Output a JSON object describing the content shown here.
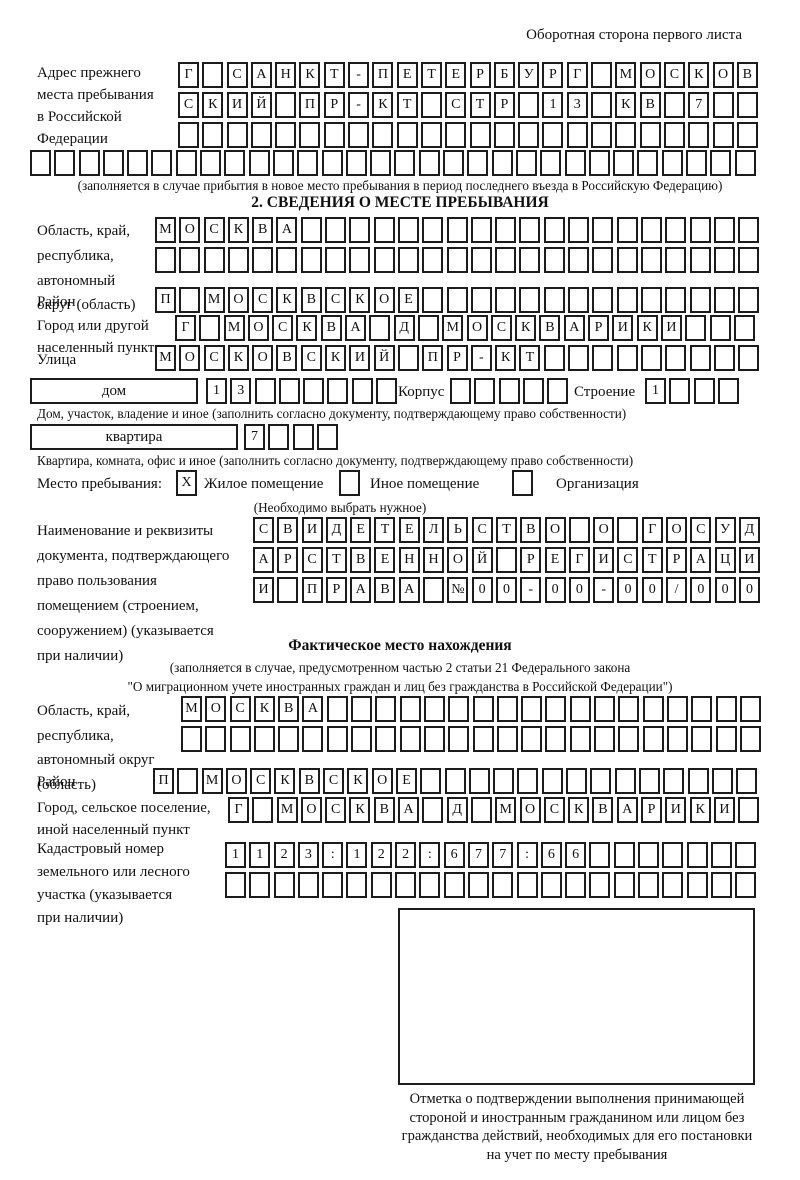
{
  "page": {
    "side_note": "Оборотная сторона первого листа"
  },
  "prev_address": {
    "label": [
      "Адрес прежнего",
      "места пребывания",
      "в Российской",
      "Федерации"
    ],
    "row1": "Г САНКТ-ПЕТЕРБУРГ МОСКОВ",
    "row2": "СКИЙ ПР-КТ СТР 13 КВ 7",
    "row3": "",
    "row4": "",
    "note": "(заполняется в случае прибытия в новое место пребывания в период последнего въезда в Российскую Федерацию)"
  },
  "section2": {
    "title": "2. СВЕДЕНИЯ О МЕСТЕ ПРЕБЫВАНИЯ",
    "oblast": {
      "label": [
        "Область, край,",
        "республика,",
        "автономный",
        "округ (область)"
      ],
      "row1": "МОСКВА",
      "row2": ""
    },
    "rayon": {
      "label": "Район",
      "row": "П МОСКВСКОЕ"
    },
    "gorod": {
      "label": [
        "Город или другой",
        "населенный пункт"
      ],
      "row": "Г МОСКВА Д МОСКВАРИКИ"
    },
    "ulitsa": {
      "label": "Улица",
      "row": "МОСКОВСКИЙ ПР-КТ"
    },
    "dom": {
      "label": "дом",
      "row": "13",
      "korpus_label": "Корпус",
      "korpus_row": "",
      "stroenie_label": "Строение",
      "stroenie_row": "1",
      "note": "Дом, участок, владение и иное (заполнить согласно документу, подтверждающему право собственности)"
    },
    "kvartira": {
      "label": "квартира",
      "row": "7",
      "note": "Квартира, комната, офис и иное (заполнить согласно документу, подтверждающему право собственности)"
    },
    "mesto": {
      "label": "Место пребывания:",
      "checked_mark": "X",
      "option1": "Жилое помещение",
      "option2": "Иное помещение",
      "option3": "Организация",
      "note": "(Необходимо выбрать нужное)"
    },
    "doc": {
      "label": [
        "Наименование и реквизиты",
        "документа, подтверждающего",
        "право пользования",
        "помещением (строением,",
        "сооружением) (указывается",
        "при наличии)"
      ],
      "row1": "СВИДЕТЕЛЬСТВО О ГОСУД",
      "row2": "АРСТВЕННОЙ РЕГИСТРАЦИ",
      "row3": "И ПРАВА №00-00-00/000"
    }
  },
  "section3": {
    "title": "Фактическое место нахождения",
    "note1": "(заполняется в случае, предусмотренном частью 2 статьи 21 Федерального закона",
    "note2": "\"О миграционном учете иностранных граждан и лиц без гражданства в Российской Федерации\")",
    "oblast": {
      "label": [
        "Область, край,",
        "республика,",
        "автономный округ",
        "(область)"
      ],
      "row1": "МОСКВА",
      "row2": ""
    },
    "rayon": {
      "label": "Район",
      "row": "П МОСКВСКОЕ"
    },
    "gorod": {
      "label": [
        "Город, сельское поселение,",
        "иной населенный пункт"
      ],
      "row": "Г МОСКВА Д МОСКВАРИКИ"
    },
    "kadastr": {
      "label": [
        "Кадастровый номер",
        "земельного или лесного",
        "участка (указывается",
        "при наличии)"
      ],
      "row1": "1123:122:677:66",
      "row2": ""
    },
    "stamp_caption": [
      "Отметка о подтверждении выполнения принимающей",
      "стороной и иностранным гражданином или лицом без",
      "гражданства действий, необходимых для его постановки",
      "на учет по месту пребывания"
    ]
  }
}
